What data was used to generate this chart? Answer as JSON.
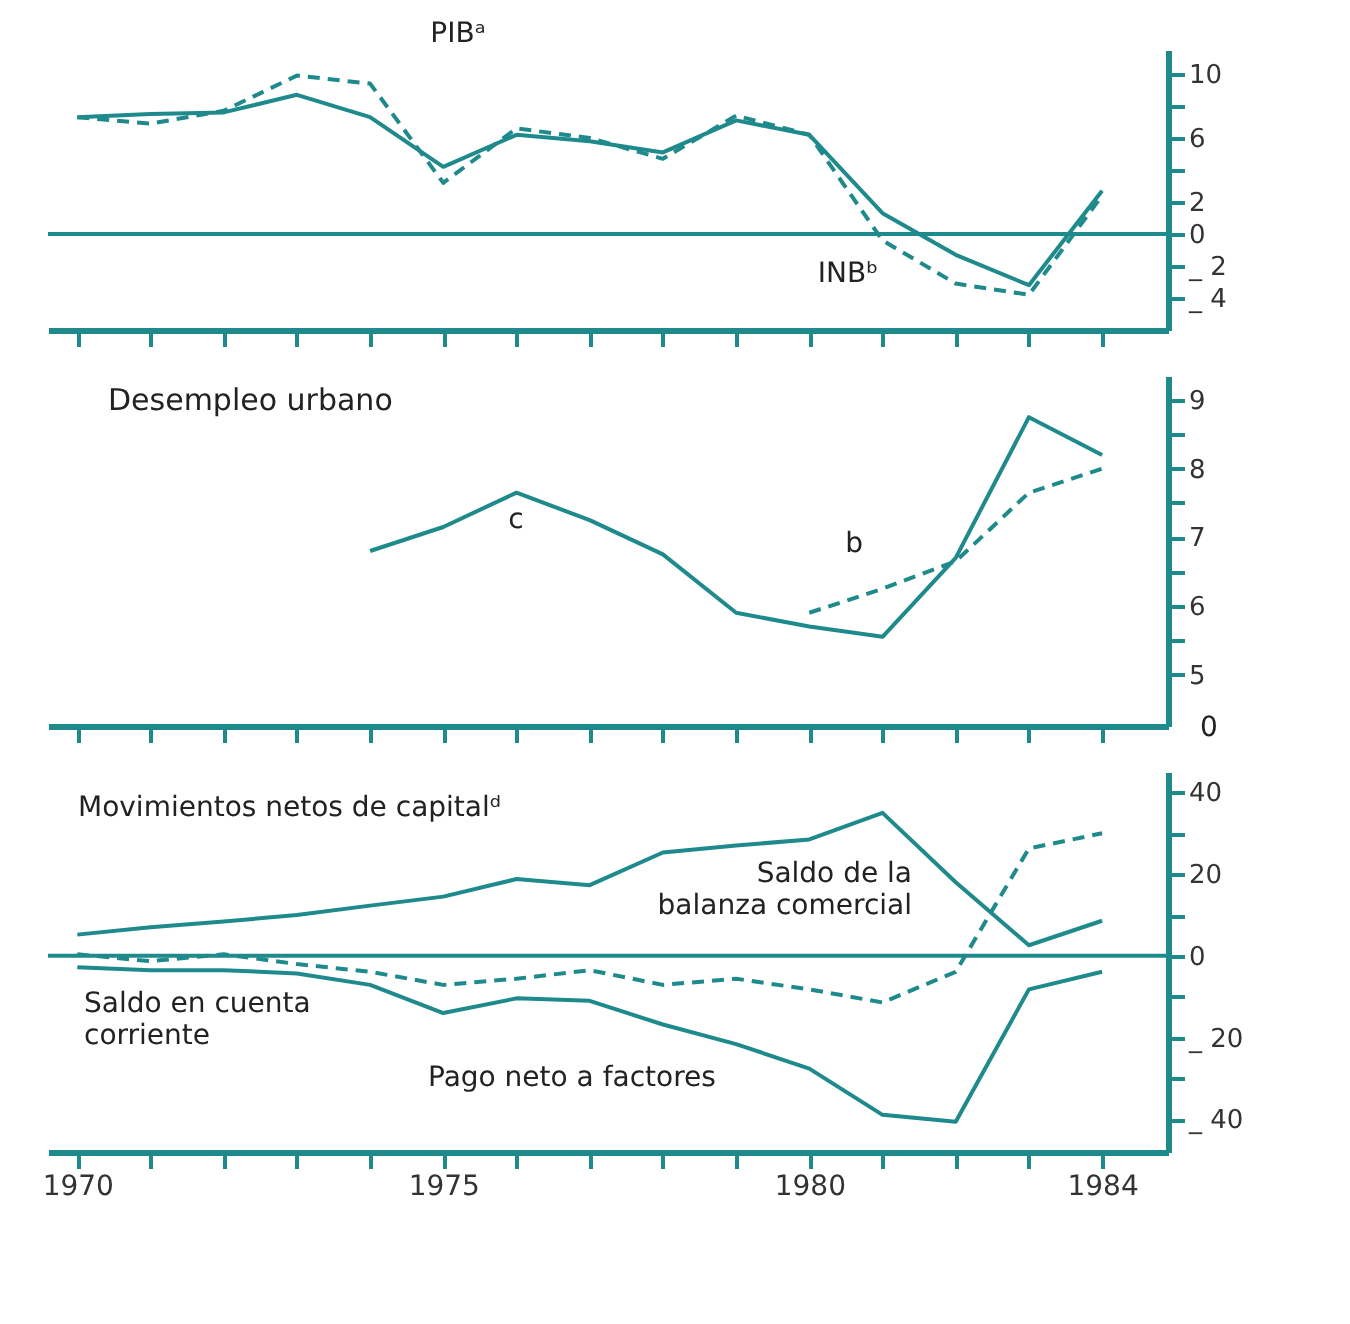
{
  "chart_data": [
    {
      "type": "line",
      "x": [
        1970,
        1971,
        1972,
        1973,
        1974,
        1975,
        1976,
        1977,
        1978,
        1979,
        1980,
        1981,
        1982,
        1983,
        1984
      ],
      "series": [
        {
          "color": "#1f8a8c",
          "line_style": "solid",
          "values": [
            7.3,
            7.5,
            7.6,
            8.7,
            7.3,
            4.2,
            6.2,
            5.8,
            5.1,
            7.1,
            6.2,
            1.3,
            -1.3,
            -3.2,
            2.7
          ]
        },
        {
          "color": "#1f8a8c",
          "line_style": "dashed",
          "values": [
            7.3,
            6.9,
            7.7,
            9.9,
            9.4,
            3.2,
            6.6,
            6.0,
            4.7,
            7.4,
            6.2,
            -0.4,
            -3.1,
            -3.8,
            2.4
          ]
        }
      ],
      "annotations": [
        "PIBᵃ",
        "INBᵇ"
      ],
      "ref_lines": [
        {
          "axis": "y",
          "value": 0,
          "color": "#1f8a8c"
        }
      ],
      "xlim": [
        1969.6,
        1984.9
      ],
      "xticks": [
        {
          "value": 1970,
          "label": null
        },
        {
          "value": 1971,
          "label": null
        },
        {
          "value": 1972,
          "label": null
        },
        {
          "value": 1973,
          "label": null
        },
        {
          "value": 1974,
          "label": null
        },
        {
          "value": 1975,
          "label": null
        },
        {
          "value": 1976,
          "label": null
        },
        {
          "value": 1977,
          "label": null
        },
        {
          "value": 1978,
          "label": null
        },
        {
          "value": 1979,
          "label": null
        },
        {
          "value": 1980,
          "label": null
        },
        {
          "value": 1981,
          "label": null
        },
        {
          "value": 1982,
          "label": null
        },
        {
          "value": 1983,
          "label": null
        },
        {
          "value": 1984,
          "label": null
        }
      ],
      "ylim": [
        -6,
        11.5
      ],
      "yticks": [
        10,
        {
          "value": 8,
          "label": null
        },
        6,
        {
          "value": 4,
          "label": null
        },
        2,
        0,
        {
          "value": -2,
          "label": "_ 2"
        },
        {
          "value": -4,
          "label": "_ 4"
        }
      ],
      "tick_labels": "y",
      "grid": false,
      "marker": "none"
    },
    {
      "type": "line",
      "title": "Desempleo urbano",
      "series": [
        {
          "color": "#1f8a8c",
          "line_style": "solid",
          "x": [
            1974,
            1975,
            1976,
            1977,
            1978,
            1979,
            1980,
            1981,
            1982,
            1983,
            1984
          ],
          "values": [
            6.8,
            7.15,
            7.65,
            7.25,
            6.75,
            5.9,
            5.7,
            5.55,
            6.7,
            8.75,
            8.2
          ]
        },
        {
          "color": "#1f8a8c",
          "line_style": "dashed",
          "x": [
            1980,
            1981,
            1982,
            1983,
            1984
          ],
          "values": [
            5.9,
            6.25,
            6.65,
            7.65,
            8.0
          ]
        }
      ],
      "annotations": [
        "c",
        "b",
        "0"
      ],
      "xlim": [
        1969.6,
        1984.9
      ],
      "xticks": [
        {
          "value": 1970,
          "label": null
        },
        {
          "value": 1971,
          "label": null
        },
        {
          "value": 1972,
          "label": null
        },
        {
          "value": 1973,
          "label": null
        },
        {
          "value": 1974,
          "label": null
        },
        {
          "value": 1975,
          "label": null
        },
        {
          "value": 1976,
          "label": null
        },
        {
          "value": 1977,
          "label": null
        },
        {
          "value": 1978,
          "label": null
        },
        {
          "value": 1979,
          "label": null
        },
        {
          "value": 1980,
          "label": null
        },
        {
          "value": 1981,
          "label": null
        },
        {
          "value": 1982,
          "label": null
        },
        {
          "value": 1983,
          "label": null
        },
        {
          "value": 1984,
          "label": null
        }
      ],
      "ylim": [
        4.25,
        9.35
      ],
      "yticks": [
        9,
        {
          "value": 8.5,
          "label": null
        },
        8,
        {
          "value": 7.5,
          "label": null
        },
        7,
        {
          "value": 6.5,
          "label": null
        },
        6,
        {
          "value": 5.5,
          "label": null
        },
        5
      ],
      "tick_labels": "y",
      "grid": false,
      "marker": "none"
    },
    {
      "type": "line",
      "x": [
        1970,
        1971,
        1972,
        1973,
        1974,
        1975,
        1976,
        1977,
        1978,
        1979,
        1980,
        1981,
        1982,
        1983,
        1984
      ],
      "series": [
        {
          "color": "#1f8a8c",
          "line_style": "solid",
          "values": [
            5.2,
            7,
            8.4,
            10,
            12.3,
            14.5,
            18.8,
            17.3,
            25.3,
            27,
            28.5,
            35,
            18,
            2.6,
            8.6
          ]
        },
        {
          "color": "#1f8a8c",
          "line_style": "dashed",
          "values": [
            0.4,
            -1.3,
            0.4,
            -2,
            -3.9,
            -7.1,
            -5.6,
            -3.5,
            -7.1,
            -5.6,
            -8.2,
            -11.4,
            -3.9,
            26.3,
            30
          ]
        },
        {
          "color": "#1f8a8c",
          "line_style": "solid",
          "values": [
            -2.8,
            -3.5,
            -3.5,
            -4.3,
            -7.1,
            -14,
            -10.4,
            -11,
            -16.8,
            -21.6,
            -27.6,
            -38.9,
            -40.6,
            -8.2,
            -3.9
          ]
        }
      ],
      "annotations": [
        "Movimientos netos de capitalᵈ",
        "Saldo de la balanza comercial",
        "Saldo en cuenta corriente",
        "Pago neto a factores"
      ],
      "ref_lines": [
        {
          "axis": "y",
          "value": 0,
          "color": "#1f8a8c"
        }
      ],
      "xlim": [
        1969.6,
        1984.9
      ],
      "xticks": [
        1970,
        {
          "value": 1971,
          "label": null
        },
        {
          "value": 1972,
          "label": null
        },
        {
          "value": 1973,
          "label": null
        },
        {
          "value": 1974,
          "label": null
        },
        1975,
        {
          "value": 1976,
          "label": null
        },
        {
          "value": 1977,
          "label": null
        },
        {
          "value": 1978,
          "label": null
        },
        {
          "value": 1979,
          "label": null
        },
        1980,
        {
          "value": 1981,
          "label": null
        },
        {
          "value": 1982,
          "label": null
        },
        {
          "value": 1983,
          "label": null
        },
        1984
      ],
      "ylim": [
        -48,
        45
      ],
      "yticks": [
        40,
        {
          "value": 30,
          "label": null
        },
        20,
        {
          "value": 10,
          "label": null
        },
        0,
        {
          "value": -10,
          "label": null
        },
        {
          "value": -20,
          "label": "_ 20"
        },
        {
          "value": -30,
          "label": null
        },
        {
          "value": -40,
          "label": "_ 40"
        }
      ],
      "grid": false,
      "marker": "none"
    }
  ]
}
